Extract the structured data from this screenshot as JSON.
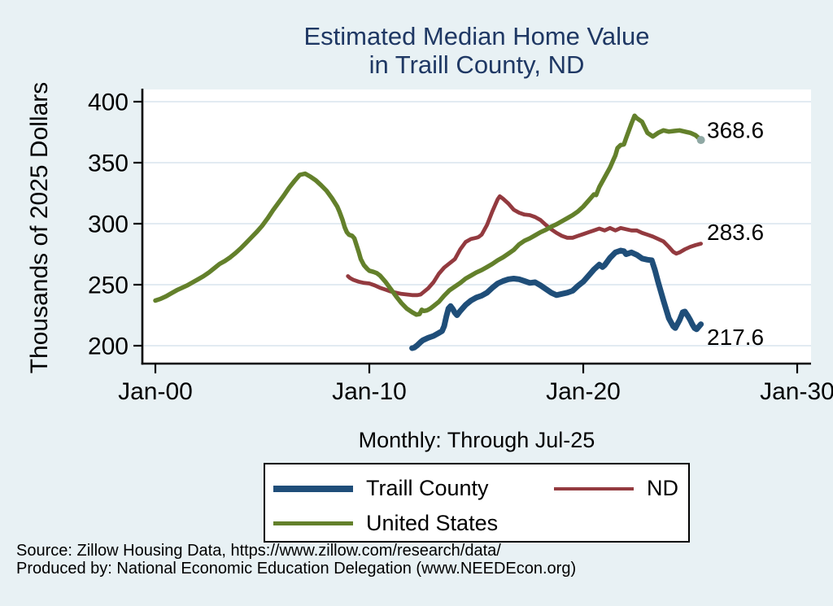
{
  "title": {
    "line1": "Estimated Median Home Value",
    "line2": "in Traill County, ND"
  },
  "subtitle": "Monthly: Through Jul-25",
  "y_axis_label": "Thousands of 2025 Dollars",
  "source": {
    "line1": "Source: Zillow Housing Data, https://www.zillow.com/research/data/",
    "line2": "Produced by: National Economic Education Delegation (www.NEEDEcon.org)"
  },
  "colors": {
    "traill": "#1f4e79",
    "nd": "#933a3f",
    "us": "#63802b",
    "end_dot": "#8fa8a4",
    "title_text": "#1f3864",
    "background": "#e8f1f4",
    "plot_bg": "#ffffff",
    "gridline": "#e2ebf2",
    "axis": "#000000"
  },
  "legend": {
    "items": [
      {
        "label": "Traill County",
        "color_key": "traill"
      },
      {
        "label": "ND",
        "color_key": "nd"
      },
      {
        "label": "United States",
        "color_key": "us"
      }
    ]
  },
  "chart_data": {
    "type": "line",
    "x_unit": "decimal_year",
    "x_axis_range": [
      1999.4,
      2030.6
    ],
    "y_axis_range": [
      185,
      410
    ],
    "grid": true,
    "x_ticks": [
      {
        "year": 2000,
        "label": "Jan-00"
      },
      {
        "year": 2010,
        "label": "Jan-10"
      },
      {
        "year": 2020,
        "label": "Jan-20"
      },
      {
        "year": 2030,
        "label": "Jan-30"
      }
    ],
    "y_ticks": [
      {
        "value": 200,
        "label": "200"
      },
      {
        "value": 250,
        "label": "250"
      },
      {
        "value": 300,
        "label": "300"
      },
      {
        "value": 350,
        "label": "350"
      },
      {
        "value": 400,
        "label": "400"
      }
    ],
    "series": [
      {
        "name": "Traill County",
        "color_key": "traill",
        "end_label": "217.6",
        "end_marker": false,
        "points": [
          [
            2012.0,
            198
          ],
          [
            2012.1,
            198.5
          ],
          [
            2012.25,
            200.5
          ],
          [
            2012.4,
            203
          ],
          [
            2012.5,
            204.5
          ],
          [
            2012.75,
            206.5
          ],
          [
            2013.0,
            208
          ],
          [
            2013.25,
            210.5
          ],
          [
            2013.4,
            212
          ],
          [
            2013.5,
            216
          ],
          [
            2013.6,
            224
          ],
          [
            2013.7,
            230.5
          ],
          [
            2013.8,
            232.5
          ],
          [
            2013.9,
            230
          ],
          [
            2014.0,
            227
          ],
          [
            2014.1,
            225
          ],
          [
            2014.25,
            228.5
          ],
          [
            2014.5,
            233.5
          ],
          [
            2014.75,
            237
          ],
          [
            2015.0,
            239.5
          ],
          [
            2015.25,
            241
          ],
          [
            2015.5,
            243.5
          ],
          [
            2015.75,
            247.5
          ],
          [
            2016.0,
            251
          ],
          [
            2016.25,
            253
          ],
          [
            2016.5,
            254.5
          ],
          [
            2016.75,
            255
          ],
          [
            2017.0,
            254.5
          ],
          [
            2017.25,
            253
          ],
          [
            2017.5,
            251.5
          ],
          [
            2017.75,
            252
          ],
          [
            2018.0,
            249.5
          ],
          [
            2018.25,
            246.5
          ],
          [
            2018.5,
            243.5
          ],
          [
            2018.75,
            241.5
          ],
          [
            2019.0,
            242.5
          ],
          [
            2019.25,
            243.5
          ],
          [
            2019.5,
            245
          ],
          [
            2019.75,
            249
          ],
          [
            2020.0,
            252.5
          ],
          [
            2020.25,
            257.5
          ],
          [
            2020.5,
            262.5
          ],
          [
            2020.75,
            266.5
          ],
          [
            2020.9,
            264.5
          ],
          [
            2021.0,
            266
          ],
          [
            2021.25,
            272
          ],
          [
            2021.5,
            276.5
          ],
          [
            2021.75,
            278
          ],
          [
            2021.9,
            277.5
          ],
          [
            2022.0,
            275
          ],
          [
            2022.25,
            276.5
          ],
          [
            2022.5,
            274.5
          ],
          [
            2022.75,
            271.5
          ],
          [
            2023.0,
            270.5
          ],
          [
            2023.2,
            270
          ],
          [
            2023.35,
            262
          ],
          [
            2023.5,
            252
          ],
          [
            2023.75,
            237
          ],
          [
            2024.0,
            222.5
          ],
          [
            2024.2,
            216
          ],
          [
            2024.3,
            214.5
          ],
          [
            2024.5,
            221
          ],
          [
            2024.65,
            227.5
          ],
          [
            2024.75,
            228
          ],
          [
            2024.9,
            224
          ],
          [
            2025.0,
            221
          ],
          [
            2025.1,
            217.5
          ],
          [
            2025.2,
            214.5
          ],
          [
            2025.3,
            213.5
          ],
          [
            2025.5,
            217.6
          ]
        ]
      },
      {
        "name": "ND",
        "color_key": "nd",
        "end_label": "283.6",
        "end_marker": false,
        "points": [
          [
            2009.0,
            257
          ],
          [
            2009.1,
            255.5
          ],
          [
            2009.25,
            254
          ],
          [
            2009.5,
            252.5
          ],
          [
            2009.75,
            251.5
          ],
          [
            2010.0,
            251
          ],
          [
            2010.25,
            249.5
          ],
          [
            2010.5,
            247.5
          ],
          [
            2010.75,
            246
          ],
          [
            2011.0,
            244.5
          ],
          [
            2011.25,
            243.5
          ],
          [
            2011.5,
            242.5
          ],
          [
            2011.75,
            242
          ],
          [
            2012.0,
            241.5
          ],
          [
            2012.25,
            241.5
          ],
          [
            2012.4,
            242
          ],
          [
            2012.5,
            243.5
          ],
          [
            2012.75,
            247
          ],
          [
            2013.0,
            252
          ],
          [
            2013.25,
            259
          ],
          [
            2013.5,
            264
          ],
          [
            2013.75,
            267.5
          ],
          [
            2014.0,
            271
          ],
          [
            2014.25,
            279
          ],
          [
            2014.5,
            285
          ],
          [
            2014.75,
            287.5
          ],
          [
            2015.0,
            288.5
          ],
          [
            2015.1,
            289
          ],
          [
            2015.25,
            291
          ],
          [
            2015.5,
            299
          ],
          [
            2015.75,
            310
          ],
          [
            2016.0,
            320
          ],
          [
            2016.1,
            322.5
          ],
          [
            2016.25,
            320.5
          ],
          [
            2016.5,
            316.5
          ],
          [
            2016.75,
            311.5
          ],
          [
            2017.0,
            309
          ],
          [
            2017.25,
            307.5
          ],
          [
            2017.5,
            307
          ],
          [
            2017.75,
            305.5
          ],
          [
            2018.0,
            303
          ],
          [
            2018.25,
            299
          ],
          [
            2018.5,
            295.5
          ],
          [
            2018.75,
            292.5
          ],
          [
            2019.0,
            290
          ],
          [
            2019.25,
            288.5
          ],
          [
            2019.5,
            288.5
          ],
          [
            2019.75,
            290
          ],
          [
            2020.0,
            291.5
          ],
          [
            2020.25,
            293
          ],
          [
            2020.5,
            294.5
          ],
          [
            2020.75,
            296
          ],
          [
            2021.0,
            294.5
          ],
          [
            2021.25,
            296.5
          ],
          [
            2021.5,
            294.5
          ],
          [
            2021.75,
            296.5
          ],
          [
            2022.0,
            295.5
          ],
          [
            2022.25,
            294.5
          ],
          [
            2022.5,
            294.5
          ],
          [
            2022.75,
            292.5
          ],
          [
            2023.0,
            291
          ],
          [
            2023.25,
            289.5
          ],
          [
            2023.5,
            287.5
          ],
          [
            2023.75,
            285.5
          ],
          [
            2024.0,
            281
          ],
          [
            2024.2,
            277
          ],
          [
            2024.35,
            275.5
          ],
          [
            2024.5,
            276.5
          ],
          [
            2024.75,
            279
          ],
          [
            2025.0,
            281
          ],
          [
            2025.25,
            282.5
          ],
          [
            2025.5,
            283.6
          ]
        ]
      },
      {
        "name": "United States",
        "color_key": "us",
        "end_label": "368.6",
        "end_marker": true,
        "points": [
          [
            2000.0,
            237
          ],
          [
            2000.25,
            238.5
          ],
          [
            2000.5,
            240.5
          ],
          [
            2000.75,
            243
          ],
          [
            2001.0,
            245.5
          ],
          [
            2001.25,
            247.5
          ],
          [
            2001.5,
            249.5
          ],
          [
            2001.75,
            252
          ],
          [
            2002.0,
            254.5
          ],
          [
            2002.25,
            257
          ],
          [
            2002.5,
            260
          ],
          [
            2002.75,
            263.5
          ],
          [
            2003.0,
            267
          ],
          [
            2003.25,
            269.5
          ],
          [
            2003.5,
            272.5
          ],
          [
            2003.75,
            276
          ],
          [
            2004.0,
            280
          ],
          [
            2004.25,
            284.5
          ],
          [
            2004.5,
            289
          ],
          [
            2004.75,
            293.5
          ],
          [
            2005.0,
            298.5
          ],
          [
            2005.25,
            304.5
          ],
          [
            2005.5,
            311
          ],
          [
            2005.75,
            317
          ],
          [
            2006.0,
            323
          ],
          [
            2006.25,
            329.5
          ],
          [
            2006.5,
            335
          ],
          [
            2006.75,
            340
          ],
          [
            2007.0,
            341
          ],
          [
            2007.25,
            338.5
          ],
          [
            2007.5,
            335.5
          ],
          [
            2007.75,
            331.5
          ],
          [
            2008.0,
            327
          ],
          [
            2008.25,
            321
          ],
          [
            2008.5,
            314
          ],
          [
            2008.6,
            310
          ],
          [
            2008.75,
            303
          ],
          [
            2008.85,
            297
          ],
          [
            2008.95,
            293
          ],
          [
            2009.05,
            291
          ],
          [
            2009.2,
            290
          ],
          [
            2009.3,
            288
          ],
          [
            2009.5,
            277
          ],
          [
            2009.6,
            271
          ],
          [
            2009.75,
            266
          ],
          [
            2009.9,
            263
          ],
          [
            2010.0,
            261.5
          ],
          [
            2010.2,
            260.5
          ],
          [
            2010.35,
            259.5
          ],
          [
            2010.5,
            257.5
          ],
          [
            2010.65,
            254.5
          ],
          [
            2010.75,
            252.5
          ],
          [
            2011.0,
            246.5
          ],
          [
            2011.25,
            240.5
          ],
          [
            2011.5,
            235
          ],
          [
            2011.75,
            230.5
          ],
          [
            2012.0,
            227.5
          ],
          [
            2012.2,
            225.5
          ],
          [
            2012.35,
            226
          ],
          [
            2012.45,
            229.5
          ],
          [
            2012.55,
            228.5
          ],
          [
            2012.7,
            229
          ],
          [
            2012.85,
            230.5
          ],
          [
            2013.0,
            232.5
          ],
          [
            2013.25,
            236
          ],
          [
            2013.5,
            241
          ],
          [
            2013.75,
            245.5
          ],
          [
            2014.0,
            248.5
          ],
          [
            2014.25,
            251.5
          ],
          [
            2014.5,
            255
          ],
          [
            2014.75,
            257.5
          ],
          [
            2015.0,
            260
          ],
          [
            2015.25,
            262
          ],
          [
            2015.5,
            264.5
          ],
          [
            2015.75,
            267
          ],
          [
            2016.0,
            270
          ],
          [
            2016.25,
            272.5
          ],
          [
            2016.5,
            275.5
          ],
          [
            2016.75,
            278.5
          ],
          [
            2017.0,
            283
          ],
          [
            2017.25,
            286
          ],
          [
            2017.5,
            288
          ],
          [
            2017.75,
            290.5
          ],
          [
            2018.0,
            293
          ],
          [
            2018.25,
            295
          ],
          [
            2018.5,
            297.5
          ],
          [
            2018.75,
            299.5
          ],
          [
            2019.0,
            302
          ],
          [
            2019.25,
            304.5
          ],
          [
            2019.5,
            307
          ],
          [
            2019.75,
            310
          ],
          [
            2020.0,
            314
          ],
          [
            2020.25,
            319
          ],
          [
            2020.4,
            322
          ],
          [
            2020.5,
            324
          ],
          [
            2020.6,
            323.5
          ],
          [
            2020.75,
            330
          ],
          [
            2021.0,
            338
          ],
          [
            2021.25,
            346
          ],
          [
            2021.4,
            352
          ],
          [
            2021.5,
            356
          ],
          [
            2021.6,
            362
          ],
          [
            2021.75,
            364.5
          ],
          [
            2021.9,
            365
          ],
          [
            2022.0,
            370
          ],
          [
            2022.25,
            382
          ],
          [
            2022.4,
            388.5
          ],
          [
            2022.5,
            386.5
          ],
          [
            2022.75,
            383.5
          ],
          [
            2023.0,
            374.5
          ],
          [
            2023.25,
            371.5
          ],
          [
            2023.5,
            374.5
          ],
          [
            2023.75,
            376.5
          ],
          [
            2024.0,
            375.5
          ],
          [
            2024.25,
            376
          ],
          [
            2024.5,
            376.5
          ],
          [
            2024.75,
            375.5
          ],
          [
            2025.0,
            374.5
          ],
          [
            2025.25,
            372.5
          ],
          [
            2025.5,
            368.6
          ]
        ]
      }
    ]
  }
}
